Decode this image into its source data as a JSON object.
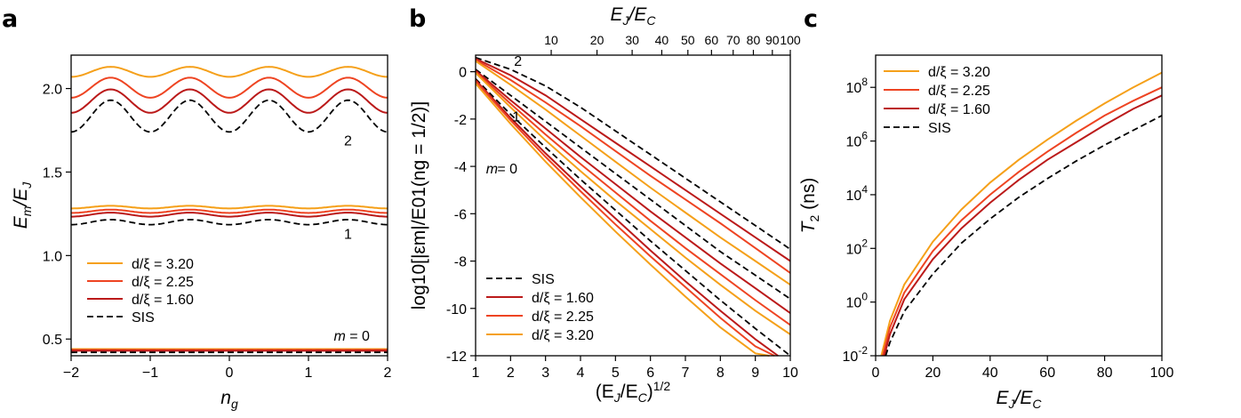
{
  "colors": {
    "d320": "#f5a01a",
    "d225": "#ee4422",
    "d160": "#bb1a1a",
    "sis": "#000000"
  },
  "panels": {
    "a": {
      "letter": "a"
    },
    "b": {
      "letter": "b"
    },
    "c": {
      "letter": "c"
    }
  },
  "chart_data": [
    {
      "type": "line",
      "panel": "a",
      "xlabel_main": "n",
      "xlabel_sub": "g",
      "ylabel_main": "E",
      "ylabel_sub1": "m",
      "ylabel_mid": "/E",
      "ylabel_sub2": "J",
      "xlim": [
        -2,
        2
      ],
      "ylim": [
        0.4,
        2.2
      ],
      "xticks": [
        -2,
        -1,
        0,
        1,
        2
      ],
      "xtick_labels": [
        "−2",
        "−1",
        "0",
        "1",
        "2"
      ],
      "yticks": [
        0.5,
        1.0,
        1.5,
        2.0
      ],
      "ytick_labels": [
        "0.5",
        "1.0",
        "1.5",
        "2.0"
      ],
      "annotations": [
        {
          "text": "2",
          "x": 1.45,
          "y": 1.66
        },
        {
          "text": "1",
          "x": 1.45,
          "y": 1.1
        },
        {
          "text": "m",
          "x": 1.32,
          "y": 0.49,
          "italic": true
        },
        {
          "text": "= 0",
          "x": 1.52,
          "y": 0.49
        }
      ],
      "legend": {
        "location": "lower-left",
        "entries": [
          {
            "label": "d/ξ = 3.20",
            "key": "d320"
          },
          {
            "label": "d/ξ = 2.25",
            "key": "d225"
          },
          {
            "label": "d/ξ = 1.60",
            "key": "d160"
          },
          {
            "label": "SIS",
            "key": "sis"
          }
        ]
      },
      "series": [
        {
          "key": "d320",
          "band": 0,
          "mean": 0.44,
          "amp": 0.0
        },
        {
          "key": "d225",
          "band": 0,
          "mean": 0.435,
          "amp": 0.0
        },
        {
          "key": "d160",
          "band": 0,
          "mean": 0.43,
          "amp": 0.0
        },
        {
          "key": "sis",
          "band": 0,
          "mean": 0.42,
          "amp": 0.0
        },
        {
          "key": "d320",
          "band": 1,
          "mean": 1.29,
          "amp": 0.008
        },
        {
          "key": "d225",
          "band": 1,
          "mean": 1.265,
          "amp": 0.01
        },
        {
          "key": "d160",
          "band": 1,
          "mean": 1.245,
          "amp": 0.012
        },
        {
          "key": "sis",
          "band": 1,
          "mean": 1.2,
          "amp": 0.015
        },
        {
          "key": "d320",
          "band": 2,
          "mean": 2.1,
          "amp": 0.03
        },
        {
          "key": "d225",
          "band": 2,
          "mean": 2.005,
          "amp": 0.06
        },
        {
          "key": "d160",
          "band": 2,
          "mean": 1.925,
          "amp": 0.07
        },
        {
          "key": "sis",
          "band": 2,
          "mean": 1.835,
          "amp": 0.095
        }
      ]
    },
    {
      "type": "line",
      "panel": "b",
      "xlabel_main": "(E",
      "xlabel_sub": "J",
      "xlabel_mid": "/E",
      "xlabel_sub2": "C",
      "xlabel_end": ")",
      "xlabel_sup": "1/2",
      "top_xlabel_main": "E",
      "top_xlabel_sub": "J",
      "top_xlabel_mid": "/E",
      "top_xlabel_sub2": "C",
      "ylabel_text": "log10[|εm|/E01(ng = 1/2)]",
      "xlim": [
        1,
        10
      ],
      "ylim": [
        -12,
        0.7
      ],
      "xticks": [
        1,
        2,
        3,
        4,
        5,
        6,
        7,
        8,
        9,
        10
      ],
      "xtick_labels": [
        "1",
        "2",
        "3",
        "4",
        "5",
        "6",
        "7",
        "8",
        "9",
        "10"
      ],
      "yticks": [
        0,
        -2,
        -4,
        -6,
        -8,
        -10,
        -12
      ],
      "ytick_labels": [
        "0",
        "-2",
        "-4",
        "-6",
        "-8",
        "-10",
        "-12"
      ],
      "top_ticks": [
        10,
        20,
        30,
        40,
        50,
        60,
        70,
        80,
        90,
        100
      ],
      "top_tick_labels": [
        "10",
        "20",
        "30",
        "40",
        "50",
        "60",
        "70",
        "80",
        "90",
        "100"
      ],
      "annotations": [
        {
          "text": "2",
          "x": 2.1,
          "y": 0.25
        },
        {
          "text": "1",
          "x": 2.05,
          "y": -2.1
        },
        {
          "text": "m",
          "x": 1.3,
          "y": -4.3,
          "italic": true
        },
        {
          "text": "= 0",
          "x": 1.62,
          "y": -4.3
        }
      ],
      "legend": {
        "location": "lower-left",
        "entries": [
          {
            "label": "SIS",
            "key": "sis"
          },
          {
            "label": "d/ξ = 1.60",
            "key": "d160"
          },
          {
            "label": "d/ξ = 2.25",
            "key": "d225"
          },
          {
            "label": "d/ξ = 3.20",
            "key": "d320"
          }
        ]
      },
      "series": [
        {
          "key": "sis",
          "m": 2,
          "x": [
            1,
            2,
            3,
            4,
            5,
            6,
            7,
            8,
            9,
            10
          ],
          "y": [
            0.6,
            0.1,
            -0.6,
            -1.5,
            -2.5,
            -3.5,
            -4.5,
            -5.5,
            -6.5,
            -7.5
          ]
        },
        {
          "key": "d160",
          "m": 2,
          "x": [
            1,
            2,
            3,
            4,
            5,
            6,
            7,
            8,
            9,
            10
          ],
          "y": [
            0.55,
            -0.15,
            -1.0,
            -2.0,
            -3.0,
            -4.0,
            -5.0,
            -6.0,
            -7.0,
            -8.0
          ]
        },
        {
          "key": "d225",
          "m": 2,
          "x": [
            1,
            2,
            3,
            4,
            5,
            6,
            7,
            8,
            9,
            10
          ],
          "y": [
            0.5,
            -0.35,
            -1.3,
            -2.3,
            -3.35,
            -4.4,
            -5.4,
            -6.4,
            -7.45,
            -8.5
          ]
        },
        {
          "key": "d320",
          "m": 2,
          "x": [
            1,
            2,
            3,
            4,
            5,
            6,
            7,
            8,
            9,
            10
          ],
          "y": [
            0.45,
            -0.55,
            -1.6,
            -2.7,
            -3.8,
            -4.9,
            -5.95,
            -7.0,
            -8.0,
            -9.0
          ]
        },
        {
          "key": "sis",
          "m": 1,
          "x": [
            1,
            2,
            3,
            4,
            5,
            6,
            7,
            8,
            9,
            10
          ],
          "y": [
            0.1,
            -1.0,
            -2.1,
            -3.2,
            -4.3,
            -5.4,
            -6.5,
            -7.6,
            -8.6,
            -9.6
          ]
        },
        {
          "key": "d160",
          "m": 1,
          "x": [
            1,
            2,
            3,
            4,
            5,
            6,
            7,
            8,
            9,
            10
          ],
          "y": [
            0.05,
            -1.2,
            -2.4,
            -3.6,
            -4.75,
            -5.9,
            -7.0,
            -8.1,
            -9.15,
            -10.2
          ]
        },
        {
          "key": "d225",
          "m": 1,
          "x": [
            1,
            2,
            3,
            4,
            5,
            6,
            7,
            8,
            9,
            10
          ],
          "y": [
            0.0,
            -1.35,
            -2.65,
            -3.9,
            -5.1,
            -6.3,
            -7.45,
            -8.55,
            -9.65,
            -10.7
          ]
        },
        {
          "key": "d320",
          "m": 1,
          "x": [
            1,
            2,
            3,
            4,
            5,
            6,
            7,
            8,
            9,
            10
          ],
          "y": [
            -0.05,
            -1.5,
            -2.9,
            -4.2,
            -5.45,
            -6.65,
            -7.85,
            -9.0,
            -10.1,
            -11.1
          ]
        },
        {
          "key": "sis",
          "m": 0,
          "x": [
            1,
            2,
            3,
            4,
            5,
            6,
            7,
            8,
            9,
            10
          ],
          "y": [
            -0.3,
            -1.8,
            -3.2,
            -4.55,
            -5.85,
            -7.15,
            -8.4,
            -9.65,
            -10.85,
            -12.0
          ]
        },
        {
          "key": "d160",
          "m": 0,
          "x": [
            1,
            2,
            3,
            4,
            5,
            6,
            7,
            8,
            9,
            9.65
          ],
          "y": [
            -0.35,
            -1.95,
            -3.45,
            -4.85,
            -6.2,
            -7.55,
            -8.85,
            -10.1,
            -11.3,
            -12.0
          ]
        },
        {
          "key": "d225",
          "m": 0,
          "x": [
            1,
            2,
            3,
            4,
            5,
            6,
            7,
            8,
            9,
            9.55
          ],
          "y": [
            -0.4,
            -2.05,
            -3.6,
            -5.05,
            -6.45,
            -7.8,
            -9.1,
            -10.4,
            -11.6,
            -12.0
          ]
        },
        {
          "key": "d320",
          "m": 0,
          "x": [
            1,
            2,
            3,
            4,
            5,
            6,
            7,
            8,
            9,
            9.4
          ],
          "y": [
            -0.5,
            -2.2,
            -3.8,
            -5.3,
            -6.75,
            -8.15,
            -9.5,
            -10.8,
            -11.9,
            -12.0
          ]
        }
      ]
    },
    {
      "type": "line",
      "panel": "c",
      "xlabel_main": "E",
      "xlabel_sub": "J",
      "xlabel_mid": "/E",
      "xlabel_sub2": "C",
      "ylabel_main": "T",
      "ylabel_sub": "2",
      "ylabel_unit": " (ns)",
      "xlim": [
        0,
        100
      ],
      "ylim_log10": [
        -2,
        9.2
      ],
      "log_y": true,
      "xticks": [
        0,
        20,
        40,
        60,
        80,
        100
      ],
      "xtick_labels": [
        "0",
        "20",
        "40",
        "60",
        "80",
        "100"
      ],
      "yticks_exp": [
        -2,
        0,
        2,
        4,
        6,
        8
      ],
      "ytick_base": "10",
      "ytick_exps": [
        "-2",
        "0",
        "2",
        "4",
        "6",
        "8"
      ],
      "legend": {
        "location": "upper-left",
        "entries": [
          {
            "label": "d/ξ = 3.20",
            "key": "d320"
          },
          {
            "label": "d/ξ = 2.25",
            "key": "d225"
          },
          {
            "label": "d/ξ = 1.60",
            "key": "d160"
          },
          {
            "label": "SIS",
            "key": "sis"
          }
        ]
      },
      "series": [
        {
          "key": "d320",
          "x": [
            2.0,
            5,
            10,
            20,
            30,
            40,
            50,
            60,
            70,
            80,
            90,
            100
          ],
          "log10_y": [
            -2.0,
            -0.7,
            0.65,
            2.25,
            3.45,
            4.45,
            5.3,
            6.05,
            6.75,
            7.4,
            8.0,
            8.55
          ]
        },
        {
          "key": "d225",
          "x": [
            2.5,
            5,
            10,
            20,
            30,
            40,
            50,
            60,
            70,
            80,
            90,
            100
          ],
          "log10_y": [
            -2.0,
            -0.95,
            0.35,
            1.9,
            3.05,
            4.0,
            4.85,
            5.6,
            6.3,
            6.95,
            7.5,
            8.0
          ]
        },
        {
          "key": "d160",
          "x": [
            3.0,
            5,
            10,
            20,
            30,
            40,
            50,
            60,
            70,
            80,
            90,
            100
          ],
          "log10_y": [
            -2.0,
            -1.2,
            0.1,
            1.6,
            2.75,
            3.7,
            4.55,
            5.3,
            5.95,
            6.6,
            7.2,
            7.7
          ]
        },
        {
          "key": "sis",
          "x": [
            3.5,
            5,
            10,
            20,
            30,
            40,
            50,
            60,
            70,
            80,
            90,
            100
          ],
          "log10_y": [
            -2.0,
            -1.5,
            -0.35,
            1.05,
            2.2,
            3.1,
            3.9,
            4.6,
            5.25,
            5.85,
            6.4,
            6.95
          ]
        }
      ]
    }
  ]
}
